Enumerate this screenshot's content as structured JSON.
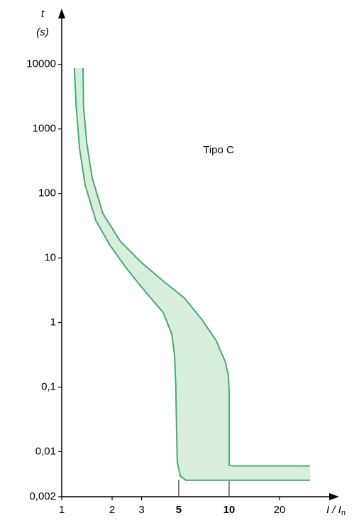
{
  "chart_data": {
    "type": "band",
    "y_label": "t",
    "y_unit": "(s)",
    "x_label": "I / I",
    "x_label_subscript": "n",
    "annotation": "Tipo C",
    "annotation_color": "#2e9a5a",
    "xscale": "log",
    "yscale": "log",
    "xlim": [
      1,
      42
    ],
    "ylim": [
      0.002,
      60000
    ],
    "xticks": [
      1,
      2,
      3,
      5,
      10,
      20
    ],
    "xtick_colors": [
      "#000000",
      "#000000",
      "#000000",
      "#2e9a5a",
      "#2e9a5a",
      "#000000"
    ],
    "yticks": [
      {
        "value": 0.002,
        "label": "0,002"
      },
      {
        "value": 0.01,
        "label": "0,01"
      },
      {
        "value": 0.1,
        "label": "0,1"
      },
      1,
      10,
      100,
      1000,
      10000
    ],
    "fill_color": "#d8eedc",
    "series": [
      {
        "color": "#4aa870",
        "x": [
          1.19,
          1.22,
          1.28,
          1.38,
          1.6,
          1.94,
          2.48,
          3.16,
          4.04,
          4.54,
          4.72,
          4.8,
          4.85,
          4.9,
          5.1,
          5.52,
          30.4
        ],
        "values": [
          8800,
          2190,
          480,
          135,
          38,
          15.8,
          6.5,
          3.0,
          1.43,
          0.67,
          0.31,
          0.11,
          0.025,
          0.007,
          0.0042,
          0.0036,
          0.0036
        ]
      },
      {
        "color": "#4aa870",
        "x": [
          1.34,
          1.35,
          1.41,
          1.52,
          1.76,
          2.25,
          3.01,
          4.04,
          5.41,
          6.9,
          8.39,
          9.52,
          9.9,
          10,
          10,
          10.7,
          30.4
        ],
        "values": [
          8800,
          2190,
          620,
          175,
          49,
          17.9,
          8.4,
          4.4,
          2.4,
          1.1,
          0.52,
          0.24,
          0.15,
          0.088,
          0.0062,
          0.006,
          0.006
        ]
      }
    ]
  }
}
